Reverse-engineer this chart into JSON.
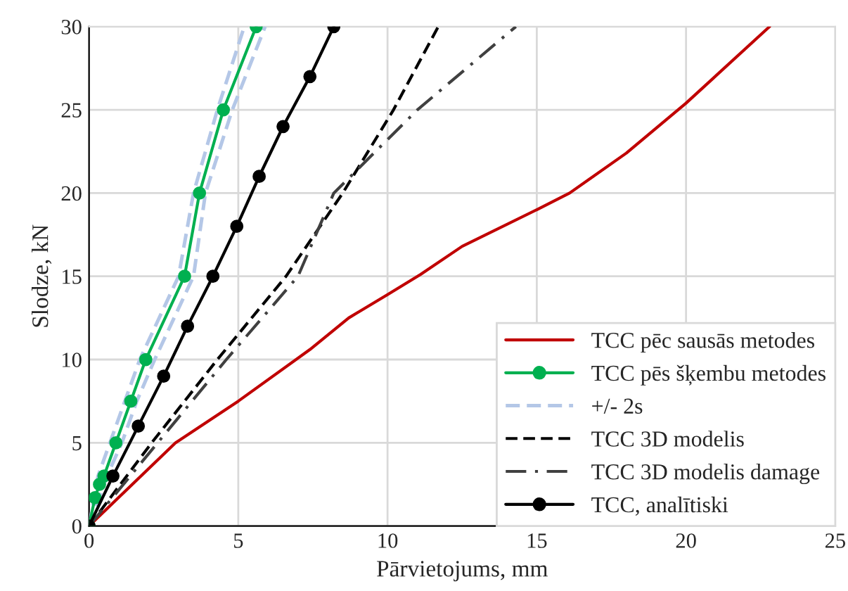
{
  "chart_data": {
    "type": "line",
    "xlabel": "Pārvietojums, mm",
    "ylabel": "Slodze, kN",
    "xlim": [
      0,
      25
    ],
    "ylim": [
      0,
      30
    ],
    "xticks": [
      0,
      5,
      10,
      15,
      20,
      25
    ],
    "yticks": [
      0,
      5,
      10,
      15,
      20,
      25,
      30
    ],
    "grid": true,
    "legend": "bottom right",
    "series": [
      {
        "name": "TCC pēc sausās metodes",
        "color": "#c00000",
        "line_style": "solid",
        "marker": "none",
        "x": [
          0,
          2.9,
          5,
          7.4,
          8.7,
          10,
          11.1,
          12.5,
          15,
          16.1,
          18,
          20,
          22.8
        ],
        "values": [
          0,
          5,
          7.5,
          10.6,
          12.5,
          13.9,
          15.1,
          16.8,
          19,
          20,
          22.4,
          25.4,
          30
        ]
      },
      {
        "name": "TCC pēs šķembu metodes",
        "color": "#00b050",
        "line_style": "solid",
        "marker": "circle",
        "x": [
          0,
          0.2,
          0.35,
          0.5,
          0.9,
          1.4,
          1.9,
          3.2,
          3.7,
          4.5,
          5.6
        ],
        "values": [
          0,
          1.7,
          2.5,
          3,
          5,
          7.5,
          10,
          15,
          20,
          25,
          30
        ]
      },
      {
        "name": "+/- 2s",
        "color": "#b4c7e7",
        "line_style": "dashed",
        "marker": "none",
        "x": [
          0,
          0.3,
          0.7,
          1.2,
          1.7,
          3.0,
          3.5,
          4.3,
          5.2
        ],
        "values": [
          0,
          3,
          5,
          7.5,
          10,
          15,
          20,
          25,
          30
        ]
      },
      {
        "color": "#b4c7e7",
        "line_style": "dashed",
        "marker": "none",
        "x": [
          0,
          0.6,
          1.1,
          1.6,
          2.2,
          3.5,
          3.9,
          4.8,
          5.9
        ],
        "values": [
          0,
          3,
          5,
          7.5,
          10,
          15,
          20,
          25,
          30
        ]
      },
      {
        "name": "TCC 3D modelis",
        "color": "#000000",
        "line_style": "dashed",
        "marker": "none",
        "x": [
          0,
          2.1,
          4.3,
          6.6,
          8.5,
          10.2,
          11.7
        ],
        "values": [
          0,
          5,
          10,
          15,
          20,
          25,
          30
        ]
      },
      {
        "name": "TCC 3D modelis damage",
        "color": "#404040",
        "line_style": "dashdot",
        "marker": "none",
        "x": [
          0,
          2.3,
          4.6,
          7.0,
          8.2,
          11.0,
          14.3
        ],
        "values": [
          0,
          5,
          10,
          15,
          20,
          25,
          30
        ]
      },
      {
        "name": "TCC, analītiski",
        "color": "#000000",
        "line_style": "solid",
        "marker": "circle",
        "x": [
          0,
          0.8,
          1.65,
          2.5,
          3.3,
          4.15,
          4.95,
          5.7,
          6.5,
          7.4,
          8.2
        ],
        "values": [
          0,
          3,
          6,
          9,
          12,
          15,
          18,
          21,
          24,
          27,
          30
        ]
      }
    ]
  }
}
